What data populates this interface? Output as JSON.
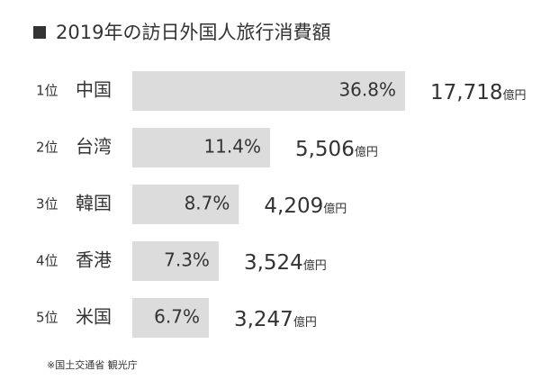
{
  "chart_data": {
    "type": "bar",
    "orientation": "horizontal",
    "title": "2019年の訪日外国人旅行消費額",
    "ranks": [
      "1位",
      "2位",
      "3位",
      "4位",
      "5位"
    ],
    "categories": [
      "中国",
      "台湾",
      "韓国",
      "香港",
      "米国"
    ],
    "values": [
      36.8,
      11.4,
      8.7,
      7.3,
      6.7
    ],
    "value_labels": [
      "36.8%",
      "11.4%",
      "8.7%",
      "7.3%",
      "6.7%"
    ],
    "amounts": [
      "17,718",
      "5,506",
      "4,209",
      "3,524",
      "3,247"
    ],
    "amount_unit": "億円",
    "color": "#dcdcdc",
    "log_scale": true,
    "xlim": [
      3.45,
      36.8
    ],
    "source": "※国土交通省 観光庁"
  }
}
